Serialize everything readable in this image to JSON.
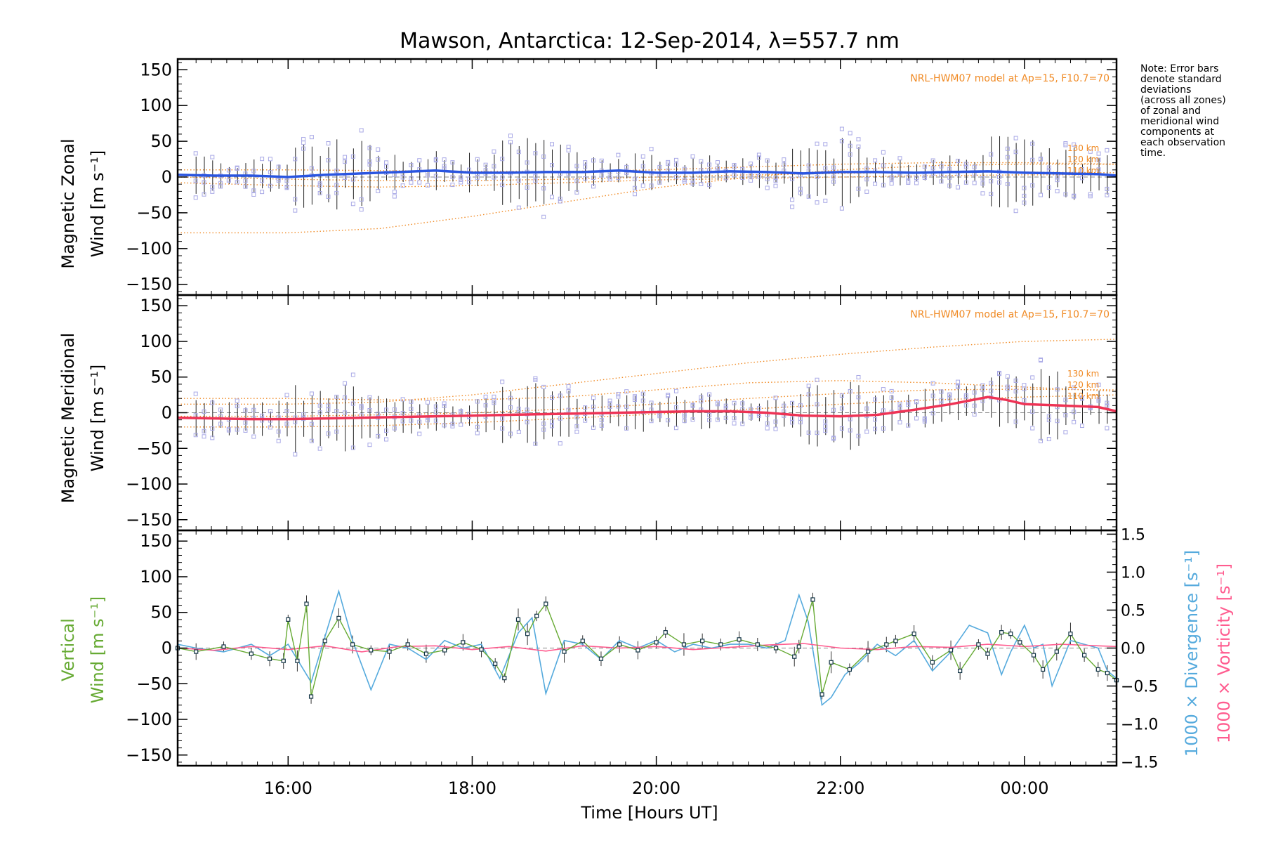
{
  "figure": {
    "title": "Mawson, Antarctica: 12-Sep-2014, λ=557.7 nm",
    "note_lines": [
      "Note: Error bars",
      "denote standard",
      "deviations",
      "(across all zones)",
      "of zonal and",
      "meridional wind",
      "components at",
      "each observation",
      "time."
    ],
    "x_axis_label": "Time [Hours UT]",
    "x_tick_labels": [
      "16:00",
      "18:00",
      "20:00",
      "22:00",
      "00:00"
    ],
    "model_label": "NRL-HWM07 model at Ap=15, F10.7=70",
    "altitude_labels": [
      "130 km",
      "120 km",
      "110 km"
    ],
    "y_tick_labels": [
      "150",
      "100",
      "50",
      "0",
      "−50",
      "−100",
      "−150"
    ],
    "y2_tick_labels": [
      "1.5",
      "1.0",
      "0.5",
      "0.0",
      "−0.5",
      "−1.0",
      "−1.5"
    ],
    "panels": {
      "zonal": {
        "ylabel_line1": "Magnetic Zonal",
        "ylabel_line2_word": "Wind",
        "ylabel_units": "[m s⁻¹]"
      },
      "meridional": {
        "ylabel_line1": "Magnetic Meridional",
        "ylabel_line2_word": "Wind",
        "ylabel_units": "[m s⁻¹]"
      },
      "vertical": {
        "ylabel_line1": "Vertical",
        "ylabel_line2_word": "Wind",
        "ylabel_units": "[m s⁻¹]",
        "y2label_divergence": "1000 × Divergence [s⁻¹]",
        "y2label_vorticity": "1000 × Vorticity [s⁻¹]"
      }
    }
  },
  "chart_data": [
    {
      "type": "line",
      "title": "Mawson, Antarctica: 12-Sep-2014, λ=557.7 nm",
      "ylabel": "Magnetic Zonal Wind [m s⁻¹]",
      "xlim": [
        14.8,
        25.0
      ],
      "ylim": [
        -165,
        165
      ],
      "colors": {
        "mean": "#2a55e0",
        "scatter": "#a9a9e6",
        "model": "#f08a24"
      },
      "series": [
        {
          "role": "mean",
          "x": [
            14.8,
            15.2,
            15.6,
            16.0,
            16.4,
            16.8,
            17.2,
            17.6,
            18.0,
            18.4,
            18.8,
            19.2,
            19.6,
            20.0,
            20.4,
            20.8,
            21.2,
            21.6,
            22.0,
            22.4,
            22.8,
            23.2,
            23.6,
            24.0,
            24.4,
            24.8,
            25.0
          ],
          "y": [
            3,
            2,
            2,
            0,
            3,
            5,
            7,
            9,
            6,
            6,
            7,
            7,
            9,
            6,
            6,
            8,
            7,
            5,
            7,
            7,
            6,
            7,
            8,
            6,
            5,
            4,
            2
          ]
        },
        {
          "role": "model",
          "x": [
            14.8,
            16.0,
            17.0,
            18.0,
            19.0,
            20.0,
            21.0,
            22.0,
            23.0,
            24.0,
            25.0
          ],
          "y": [
            -78,
            -78,
            -72,
            -55,
            -35,
            -15,
            0,
            10,
            16,
            18,
            18
          ]
        },
        {
          "role": "model",
          "x": [
            14.8,
            16.0,
            17.0,
            18.0,
            19.0,
            20.0,
            21.0,
            22.0,
            23.0,
            24.0,
            25.0
          ],
          "y": [
            10,
            10,
            9,
            8,
            8,
            10,
            14,
            18,
            20,
            20,
            18
          ]
        },
        {
          "role": "model",
          "x": [
            14.8,
            16.0,
            17.0,
            18.0,
            19.0,
            20.0,
            21.0,
            22.0,
            23.0,
            24.0,
            25.0
          ],
          "y": [
            0,
            -3,
            -5,
            -5,
            -3,
            0,
            3,
            5,
            7,
            7,
            6
          ]
        },
        {
          "role": "model",
          "x": [
            14.8,
            16.0,
            17.0,
            18.0,
            19.0,
            20.0,
            21.0,
            22.0,
            23.0,
            24.0,
            25.0
          ],
          "y": [
            -8,
            -12,
            -14,
            -12,
            -8,
            -4,
            -2,
            0,
            2,
            3,
            3
          ]
        }
      ]
    },
    {
      "type": "line",
      "ylabel": "Magnetic Meridional Wind [m s⁻¹]",
      "xlim": [
        14.8,
        25.0
      ],
      "ylim": [
        -165,
        165
      ],
      "colors": {
        "mean": "#ee3355",
        "scatter": "#a9a9e6",
        "model": "#f08a24"
      },
      "series": [
        {
          "role": "mean",
          "x": [
            14.8,
            15.2,
            15.6,
            16.0,
            16.4,
            16.8,
            17.2,
            17.6,
            18.0,
            18.4,
            18.8,
            19.2,
            19.6,
            20.0,
            20.4,
            20.8,
            21.2,
            21.6,
            22.0,
            22.4,
            22.8,
            23.2,
            23.6,
            23.8,
            24.0,
            24.4,
            24.8,
            25.0
          ],
          "y": [
            -7,
            -8,
            -9,
            -9,
            -8,
            -7,
            -6,
            -5,
            -4,
            -3,
            -2,
            -1,
            0,
            1,
            2,
            2,
            0,
            -4,
            -5,
            -3,
            4,
            12,
            22,
            18,
            12,
            10,
            8,
            2
          ]
        },
        {
          "role": "model",
          "x": [
            14.8,
            16.0,
            17.0,
            18.0,
            19.0,
            20.0,
            21.0,
            22.0,
            23.0,
            24.0,
            25.0
          ],
          "y": [
            12,
            12,
            15,
            25,
            40,
            55,
            70,
            82,
            92,
            100,
            103
          ]
        },
        {
          "role": "model",
          "x": [
            14.8,
            16.0,
            17.0,
            18.0,
            19.0,
            20.0,
            21.0,
            22.0,
            23.0,
            24.0,
            25.0
          ],
          "y": [
            20,
            20,
            18,
            18,
            22,
            32,
            42,
            45,
            42,
            36,
            30
          ]
        },
        {
          "role": "model",
          "x": [
            14.8,
            16.0,
            17.0,
            18.0,
            19.0,
            20.0,
            21.0,
            22.0,
            23.0,
            24.0,
            25.0
          ],
          "y": [
            -5,
            -5,
            -3,
            0,
            5,
            12,
            20,
            27,
            32,
            33,
            32
          ]
        },
        {
          "role": "model",
          "x": [
            14.8,
            16.0,
            17.0,
            18.0,
            19.0,
            20.0,
            21.0,
            22.0,
            23.0,
            24.0,
            25.0
          ],
          "y": [
            -20,
            -20,
            -18,
            -14,
            -8,
            -2,
            5,
            12,
            18,
            22,
            25
          ]
        }
      ]
    },
    {
      "type": "line",
      "ylabel": "Vertical Wind [m s⁻¹]",
      "y2label": "1000 × Divergence [s⁻¹] / 1000 × Vorticity [s⁻¹]",
      "xlim": [
        14.8,
        25.0
      ],
      "ylim": [
        -165,
        165
      ],
      "y2lim": [
        -1.55,
        1.55
      ],
      "colors": {
        "vertical": "#66aa33",
        "divergence": "#55aadd",
        "vorticity": "#ff5c8f"
      },
      "series": [
        {
          "role": "vertical",
          "axis": "left",
          "x": [
            14.8,
            15.0,
            15.3,
            15.6,
            15.8,
            15.95,
            16.0,
            16.1,
            16.2,
            16.25,
            16.4,
            16.55,
            16.7,
            16.9,
            17.1,
            17.3,
            17.5,
            17.7,
            17.9,
            18.1,
            18.25,
            18.35,
            18.5,
            18.6,
            18.7,
            18.8,
            19.0,
            19.2,
            19.4,
            19.6,
            19.8,
            20.0,
            20.1,
            20.3,
            20.5,
            20.7,
            20.9,
            21.1,
            21.3,
            21.5,
            21.55,
            21.7,
            21.8,
            21.9,
            22.1,
            22.3,
            22.5,
            22.6,
            22.8,
            23.0,
            23.2,
            23.3,
            23.5,
            23.6,
            23.75,
            23.85,
            23.95,
            24.1,
            24.2,
            24.35,
            24.5,
            24.65,
            24.8,
            24.9,
            25.0
          ],
          "y": [
            0,
            -5,
            2,
            -8,
            -15,
            -18,
            40,
            -18,
            62,
            -68,
            10,
            42,
            5,
            -3,
            -5,
            5,
            -8,
            -3,
            8,
            -2,
            -22,
            -42,
            40,
            20,
            45,
            62,
            -5,
            10,
            -15,
            5,
            -3,
            8,
            22,
            5,
            10,
            5,
            12,
            5,
            0,
            -12,
            2,
            68,
            -65,
            -20,
            -30,
            -5,
            5,
            10,
            20,
            -20,
            -3,
            -32,
            5,
            -8,
            22,
            20,
            8,
            -10,
            -30,
            -5,
            20,
            -10,
            -30,
            -35,
            -45
          ]
        },
        {
          "role": "divergence",
          "axis": "right",
          "x": [
            14.8,
            15.0,
            15.3,
            15.6,
            15.8,
            16.0,
            16.1,
            16.25,
            16.45,
            16.55,
            16.7,
            16.9,
            17.1,
            17.3,
            17.5,
            17.7,
            17.9,
            18.1,
            18.3,
            18.5,
            18.65,
            18.8,
            19.0,
            19.2,
            19.4,
            19.6,
            19.8,
            20.0,
            20.2,
            20.4,
            20.6,
            20.8,
            21.0,
            21.2,
            21.4,
            21.55,
            21.65,
            21.8,
            21.9,
            22.05,
            22.2,
            22.4,
            22.6,
            22.8,
            23.0,
            23.2,
            23.4,
            23.6,
            23.75,
            23.85,
            24.0,
            24.1,
            24.2,
            24.3,
            24.5,
            24.65,
            24.8,
            24.9,
            25.0
          ],
          "y": [
            0.05,
            0.0,
            -0.05,
            0.05,
            -0.1,
            0.05,
            -0.15,
            -0.45,
            0.35,
            0.75,
            0.1,
            -0.55,
            0.05,
            0.0,
            -0.15,
            0.1,
            0.0,
            0.05,
            -0.4,
            0.2,
            0.4,
            -0.6,
            0.1,
            0.05,
            -0.15,
            0.1,
            0.0,
            0.1,
            -0.05,
            0.05,
            0.0,
            0.05,
            0.05,
            0.0,
            0.1,
            0.7,
            0.35,
            -0.75,
            -0.65,
            -0.35,
            -0.2,
            0.05,
            -0.1,
            0.1,
            -0.3,
            -0.05,
            0.3,
            0.2,
            -0.35,
            -0.05,
            0.3,
            0.0,
            0.05,
            -0.5,
            0.1,
            0.05,
            0.0,
            -0.3,
            -0.4
          ]
        },
        {
          "role": "vorticity",
          "axis": "right",
          "x": [
            14.8,
            15.2,
            15.6,
            16.0,
            16.4,
            16.8,
            17.2,
            17.6,
            18.0,
            18.4,
            18.8,
            19.2,
            19.6,
            20.0,
            20.4,
            20.8,
            21.2,
            21.6,
            22.0,
            22.4,
            22.8,
            23.2,
            23.6,
            24.0,
            24.4,
            24.8,
            25.0
          ],
          "y": [
            0.0,
            -0.03,
            0.02,
            -0.02,
            0.03,
            -0.05,
            0.02,
            0.03,
            -0.02,
            0.02,
            -0.04,
            0.03,
            0.0,
            0.02,
            -0.02,
            0.01,
            0.04,
            0.06,
            0.0,
            -0.02,
            0.02,
            0.01,
            0.05,
            0.02,
            0.05,
            0.03,
            0.02
          ]
        }
      ]
    }
  ]
}
